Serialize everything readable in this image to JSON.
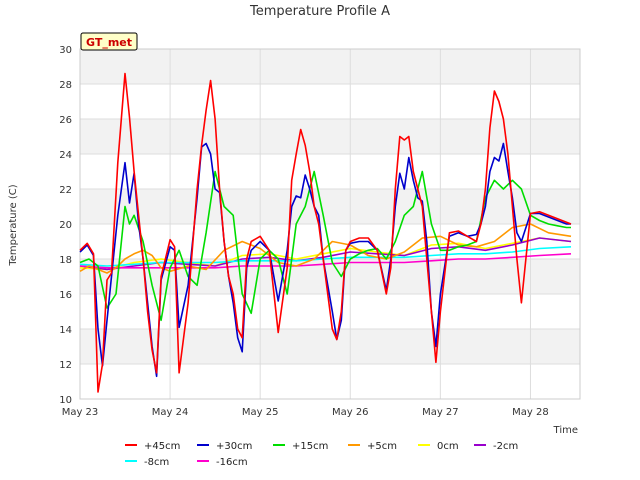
{
  "chart_data": {
    "type": "line",
    "title": "Temperature Profile A",
    "xlabel": "Time",
    "ylabel": "Temperature (C)",
    "badge": "GT_met",
    "ylim": [
      10,
      30
    ],
    "xlim": [
      0,
      5.55
    ],
    "x_ticks": [
      0,
      1,
      2,
      3,
      4,
      5
    ],
    "x_tick_labels": [
      "May 23",
      "May 24",
      "May 25",
      "May 26",
      "May 27",
      "May 28"
    ],
    "y_ticks": [
      10,
      12,
      14,
      16,
      18,
      20,
      22,
      24,
      26,
      28,
      30
    ],
    "grid": true,
    "legend_position": "bottom",
    "series": [
      {
        "name": "+45cm",
        "color": "#ff0000",
        "x": [
          0.0,
          0.08,
          0.15,
          0.2,
          0.25,
          0.3,
          0.35,
          0.42,
          0.5,
          0.55,
          0.6,
          0.65,
          0.7,
          0.75,
          0.8,
          0.85,
          0.9,
          1.0,
          1.05,
          1.1,
          1.2,
          1.3,
          1.35,
          1.4,
          1.45,
          1.5,
          1.55,
          1.6,
          1.65,
          1.7,
          1.75,
          1.8,
          1.85,
          1.9,
          2.0,
          2.1,
          2.2,
          2.3,
          2.35,
          2.4,
          2.45,
          2.5,
          2.55,
          2.6,
          2.65,
          2.7,
          2.8,
          2.85,
          2.9,
          2.95,
          3.0,
          3.1,
          3.2,
          3.3,
          3.4,
          3.45,
          3.5,
          3.55,
          3.6,
          3.65,
          3.7,
          3.75,
          3.8,
          3.85,
          3.9,
          3.95,
          4.0,
          4.1,
          4.2,
          4.3,
          4.4,
          4.45,
          4.5,
          4.55,
          4.6,
          4.65,
          4.7,
          4.75,
          4.8,
          4.85,
          4.9,
          5.0,
          5.1,
          5.2,
          5.3,
          5.4,
          5.45
        ],
        "y": [
          18.5,
          18.9,
          18.3,
          10.4,
          12.0,
          16.8,
          17.2,
          23.5,
          28.6,
          26.1,
          23.0,
          20.5,
          18.0,
          15.0,
          12.8,
          11.5,
          17.0,
          19.1,
          18.7,
          11.5,
          15.5,
          22.0,
          24.5,
          26.5,
          28.2,
          26.0,
          22.0,
          19.0,
          17.0,
          16.0,
          14.0,
          13.5,
          18.0,
          19.0,
          19.3,
          18.5,
          13.8,
          17.5,
          22.5,
          24.0,
          25.4,
          24.5,
          23.0,
          21.0,
          20.0,
          18.0,
          14.0,
          13.4,
          15.0,
          18.5,
          19.0,
          19.2,
          19.2,
          18.5,
          16.0,
          17.5,
          22.0,
          25.0,
          24.8,
          25.0,
          23.0,
          22.0,
          21.0,
          18.0,
          15.0,
          12.1,
          15.0,
          19.5,
          19.6,
          19.3,
          19.0,
          20.0,
          22.0,
          25.5,
          27.6,
          27.0,
          26.0,
          24.0,
          21.0,
          18.0,
          15.5,
          20.6,
          20.7,
          20.5,
          20.3,
          20.1,
          20.0
        ]
      },
      {
        "name": "+30cm",
        "color": "#0000cc",
        "x": [
          0.0,
          0.08,
          0.15,
          0.2,
          0.25,
          0.3,
          0.35,
          0.42,
          0.5,
          0.55,
          0.6,
          0.65,
          0.7,
          0.75,
          0.8,
          0.85,
          0.9,
          1.0,
          1.05,
          1.1,
          1.2,
          1.3,
          1.35,
          1.4,
          1.45,
          1.5,
          1.55,
          1.6,
          1.65,
          1.7,
          1.75,
          1.8,
          1.85,
          1.9,
          2.0,
          2.1,
          2.2,
          2.3,
          2.35,
          2.4,
          2.45,
          2.5,
          2.55,
          2.6,
          2.65,
          2.7,
          2.8,
          2.85,
          2.9,
          2.95,
          3.0,
          3.1,
          3.2,
          3.3,
          3.4,
          3.45,
          3.5,
          3.55,
          3.6,
          3.65,
          3.7,
          3.75,
          3.8,
          3.85,
          3.9,
          3.95,
          4.0,
          4.1,
          4.2,
          4.3,
          4.4,
          4.45,
          4.5,
          4.55,
          4.6,
          4.65,
          4.7,
          4.75,
          4.8,
          4.85,
          4.9,
          5.0,
          5.1,
          5.2,
          5.3,
          5.4,
          5.45
        ],
        "y": [
          18.4,
          18.8,
          18.2,
          14.0,
          11.9,
          14.5,
          17.0,
          20.5,
          23.5,
          21.2,
          22.9,
          20.0,
          18.0,
          15.5,
          13.0,
          11.3,
          16.8,
          18.7,
          18.5,
          14.1,
          16.5,
          21.5,
          24.4,
          24.6,
          24.0,
          22.0,
          21.8,
          19.0,
          17.0,
          15.5,
          13.5,
          12.7,
          17.5,
          18.5,
          19.0,
          18.5,
          15.6,
          18.5,
          21.0,
          21.6,
          21.5,
          22.8,
          22.0,
          21.0,
          20.5,
          18.0,
          15.0,
          13.4,
          14.5,
          18.5,
          18.9,
          19.0,
          19.0,
          18.5,
          16.2,
          18.0,
          21.0,
          22.9,
          22.0,
          23.8,
          22.5,
          21.5,
          21.3,
          19.0,
          15.0,
          13.0,
          16.0,
          19.3,
          19.5,
          19.3,
          19.4,
          20.0,
          21.0,
          23.0,
          23.8,
          23.6,
          24.6,
          23.0,
          21.5,
          19.5,
          19.0,
          20.6,
          20.6,
          20.4,
          20.2,
          20.0,
          20.0
        ]
      },
      {
        "name": "+15cm",
        "color": "#00dd00",
        "x": [
          0.0,
          0.1,
          0.2,
          0.3,
          0.4,
          0.5,
          0.55,
          0.6,
          0.7,
          0.8,
          0.9,
          1.0,
          1.1,
          1.2,
          1.3,
          1.4,
          1.5,
          1.6,
          1.7,
          1.8,
          1.9,
          2.0,
          2.1,
          2.2,
          2.3,
          2.4,
          2.5,
          2.6,
          2.7,
          2.8,
          2.9,
          3.0,
          3.1,
          3.2,
          3.3,
          3.4,
          3.5,
          3.6,
          3.7,
          3.8,
          3.9,
          4.0,
          4.1,
          4.2,
          4.3,
          4.4,
          4.5,
          4.6,
          4.7,
          4.8,
          4.9,
          5.0,
          5.1,
          5.2,
          5.3,
          5.4,
          5.45
        ],
        "y": [
          17.8,
          18.0,
          17.6,
          15.2,
          16.0,
          21.0,
          20.0,
          20.5,
          19.0,
          16.5,
          14.5,
          17.5,
          18.5,
          17.0,
          16.5,
          19.5,
          23.0,
          21.0,
          20.5,
          16.0,
          14.9,
          18.0,
          18.5,
          18.0,
          16.0,
          20.0,
          21.0,
          23.0,
          20.5,
          17.8,
          17.0,
          18.0,
          18.3,
          18.5,
          18.6,
          18.0,
          19.0,
          20.5,
          21.0,
          23.0,
          20.0,
          18.5,
          18.5,
          18.7,
          18.8,
          19.0,
          21.5,
          22.5,
          22.0,
          22.5,
          22.0,
          20.5,
          20.2,
          20.0,
          19.9,
          19.8,
          19.8
        ]
      },
      {
        "name": "+5cm",
        "color": "#ff9900",
        "x": [
          0.0,
          0.1,
          0.2,
          0.3,
          0.4,
          0.5,
          0.6,
          0.7,
          0.8,
          0.9,
          1.0,
          1.2,
          1.4,
          1.6,
          1.8,
          2.0,
          2.2,
          2.4,
          2.6,
          2.8,
          3.0,
          3.2,
          3.4,
          3.6,
          3.8,
          4.0,
          4.2,
          4.4,
          4.6,
          4.8,
          5.0,
          5.2,
          5.45
        ],
        "y": [
          17.3,
          17.6,
          17.4,
          17.2,
          17.5,
          18.0,
          18.3,
          18.5,
          18.2,
          17.5,
          17.3,
          17.6,
          17.4,
          18.5,
          19.0,
          18.6,
          17.8,
          17.6,
          18.0,
          19.0,
          18.8,
          18.2,
          18.0,
          18.4,
          19.2,
          19.3,
          18.8,
          18.7,
          19.0,
          19.8,
          20.0,
          19.5,
          19.3
        ]
      },
      {
        "name": "0cm",
        "color": "#ffff00",
        "x": [
          0.0,
          0.3,
          0.6,
          0.9,
          1.2,
          1.5,
          1.8,
          2.1,
          2.4,
          2.7,
          3.0,
          3.3,
          3.6,
          3.9,
          4.2,
          4.5,
          4.8,
          5.1,
          5.45
        ],
        "y": [
          17.5,
          17.4,
          17.8,
          18.0,
          17.8,
          17.6,
          18.2,
          18.3,
          18.0,
          18.3,
          18.6,
          18.4,
          18.2,
          18.8,
          18.9,
          18.6,
          18.9,
          19.2,
          19.0
        ]
      },
      {
        "name": "-2cm",
        "color": "#9900cc",
        "x": [
          0.0,
          0.3,
          0.6,
          0.9,
          1.2,
          1.5,
          1.8,
          2.1,
          2.4,
          2.7,
          3.0,
          3.3,
          3.6,
          3.9,
          4.2,
          4.5,
          4.8,
          5.1,
          5.45
        ],
        "y": [
          17.6,
          17.4,
          17.6,
          17.8,
          17.7,
          17.6,
          18.0,
          18.1,
          17.9,
          18.1,
          18.4,
          18.3,
          18.2,
          18.6,
          18.7,
          18.5,
          18.8,
          19.2,
          19.0
        ]
      },
      {
        "name": "-8cm",
        "color": "#00ffff",
        "x": [
          0.0,
          0.3,
          0.6,
          0.9,
          1.2,
          1.5,
          1.8,
          2.1,
          2.4,
          2.7,
          3.0,
          3.3,
          3.6,
          3.9,
          4.2,
          4.5,
          4.8,
          5.1,
          5.45
        ],
        "y": [
          17.7,
          17.6,
          17.7,
          17.8,
          17.8,
          17.8,
          17.9,
          17.9,
          17.9,
          18.0,
          18.1,
          18.1,
          18.1,
          18.2,
          18.3,
          18.3,
          18.4,
          18.6,
          18.7
        ]
      },
      {
        "name": "-16cm",
        "color": "#ff00cc",
        "x": [
          0.0,
          0.3,
          0.6,
          0.9,
          1.2,
          1.5,
          1.8,
          2.1,
          2.4,
          2.7,
          3.0,
          3.3,
          3.6,
          3.9,
          4.2,
          4.5,
          4.8,
          5.1,
          5.45
        ],
        "y": [
          17.6,
          17.5,
          17.5,
          17.5,
          17.5,
          17.5,
          17.6,
          17.6,
          17.6,
          17.7,
          17.8,
          17.8,
          17.8,
          17.9,
          18.0,
          18.0,
          18.1,
          18.2,
          18.3
        ]
      }
    ]
  }
}
